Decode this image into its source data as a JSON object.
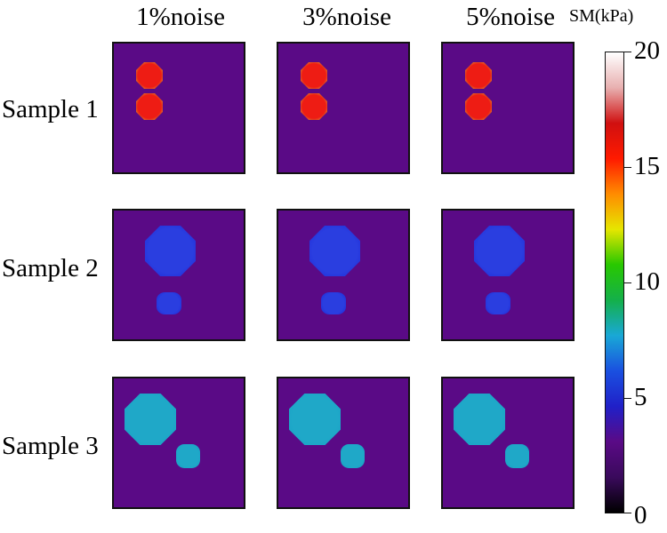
{
  "columns": [
    "1%noise",
    "3%noise",
    "5%noise"
  ],
  "rows": [
    "Sample 1",
    "Sample 2",
    "Sample 3"
  ],
  "colorbar": {
    "title": "SM(kPa)",
    "ticks": [
      "20",
      "15",
      "10",
      "5",
      "0"
    ],
    "range": [
      0,
      20
    ],
    "colormap": [
      "#000000",
      "#3a0a5c",
      "#5a0a86",
      "#2020c8",
      "#1a50e0",
      "#19a8d6",
      "#14b04a",
      "#28c800",
      "#e6e600",
      "#ff8c00",
      "#ff1a00",
      "#d01010",
      "#e8b0b0",
      "#ffffff"
    ]
  },
  "background_color": "#5a0a86",
  "samples": [
    {
      "stiffness_kPa": 18,
      "fill": "#ee1c14",
      "edge": "#c8e640"
    },
    {
      "stiffness_kPa": 4,
      "fill": "#2a3ee0",
      "edge": "#1c28d8"
    },
    {
      "stiffness_kPa": 6.5,
      "fill": "#1fa8c8",
      "edge": "#16a0c4"
    }
  ]
}
